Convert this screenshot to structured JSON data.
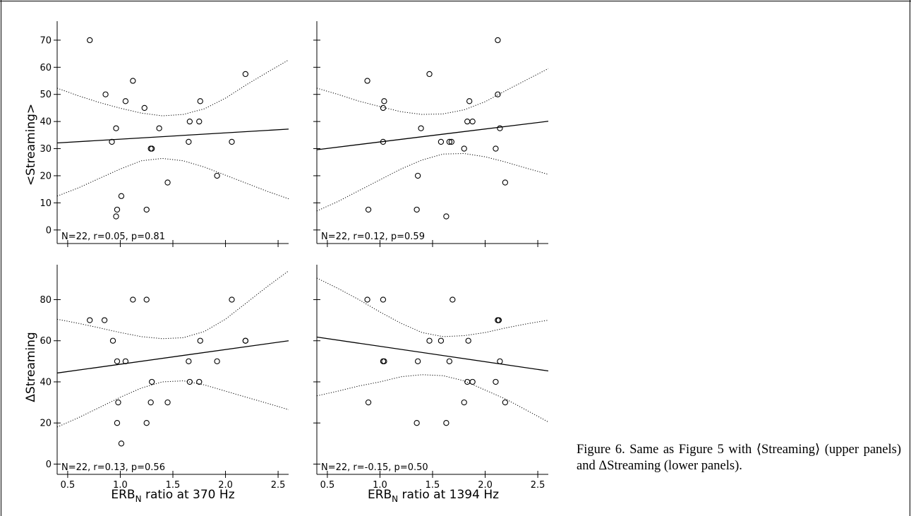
{
  "figure": {
    "caption": "Figure 6. Same as Figure 5 with ⟨Streaming⟩ (upper panels) and ΔStreaming (lower panels).",
    "xlabels": {
      "left_main": "ERB",
      "left_sub": "N",
      "left_rest": " ratio at 370 Hz",
      "right_main": "ERB",
      "right_sub": "N",
      "right_rest": " ratio at 1394 Hz"
    },
    "ylabels": {
      "top": "<Streaming>",
      "bottom": "ΔStreaming"
    }
  },
  "chart_data": [
    {
      "type": "scatter",
      "panel": "upper-left",
      "xlabel": "",
      "ylabel": "<Streaming>",
      "xlim": [
        0.4,
        2.6
      ],
      "ylim": [
        -5,
        77
      ],
      "xticks": [
        0.5,
        1.0,
        1.5,
        2.0,
        2.5
      ],
      "yticks": [
        0,
        10,
        20,
        30,
        40,
        50,
        60,
        70
      ],
      "annotation": "N=22, r=0.05, p=0.81",
      "points": [
        [
          0.71,
          70
        ],
        [
          0.86,
          50
        ],
        [
          1.12,
          55
        ],
        [
          1.05,
          47.5
        ],
        [
          1.23,
          45
        ],
        [
          0.92,
          32.5
        ],
        [
          0.96,
          37.5
        ],
        [
          1.29,
          30
        ],
        [
          1.3,
          30
        ],
        [
          1.37,
          37.5
        ],
        [
          1.76,
          47.5
        ],
        [
          2.19,
          57.5
        ],
        [
          1.66,
          40
        ],
        [
          1.75,
          40
        ],
        [
          1.65,
          32.5
        ],
        [
          2.06,
          32.5
        ],
        [
          1.92,
          20
        ],
        [
          1.45,
          17.5
        ],
        [
          1.01,
          12.5
        ],
        [
          0.97,
          7.5
        ],
        [
          0.96,
          5
        ],
        [
          1.25,
          7.5
        ]
      ],
      "fit": [
        [
          0.4,
          32.1
        ],
        [
          2.6,
          37.2
        ]
      ],
      "ci_upper": [
        [
          0.4,
          52.3
        ],
        [
          0.6,
          49.5
        ],
        [
          0.8,
          47
        ],
        [
          1.0,
          44.9
        ],
        [
          1.2,
          43.1
        ],
        [
          1.4,
          42.1
        ],
        [
          1.6,
          42.6
        ],
        [
          1.8,
          44.7
        ],
        [
          2.0,
          48.6
        ],
        [
          2.2,
          53.6
        ],
        [
          2.4,
          58.2
        ],
        [
          2.6,
          62.7
        ]
      ],
      "ci_lower": [
        [
          0.4,
          12.5
        ],
        [
          0.6,
          15.5
        ],
        [
          0.8,
          19
        ],
        [
          1.0,
          22.5
        ],
        [
          1.2,
          25.5
        ],
        [
          1.4,
          26.4
        ],
        [
          1.6,
          25.5
        ],
        [
          1.8,
          23.2
        ],
        [
          2.0,
          20.2
        ],
        [
          2.2,
          17.2
        ],
        [
          2.4,
          14.2
        ],
        [
          2.6,
          11.5
        ]
      ]
    },
    {
      "type": "scatter",
      "panel": "upper-right",
      "xlabel": "",
      "ylabel": "",
      "xlim": [
        0.4,
        2.6
      ],
      "ylim": [
        -5,
        77
      ],
      "xticks": [
        0.5,
        1.0,
        1.5,
        2.0,
        2.5
      ],
      "yticks": [
        0,
        10,
        20,
        30,
        40,
        50,
        60,
        70
      ],
      "annotation": "N=22, r=0.12, p=0.59",
      "points": [
        [
          0.88,
          55
        ],
        [
          1.03,
          45
        ],
        [
          1.04,
          47.5
        ],
        [
          1.47,
          57.5
        ],
        [
          2.12,
          70
        ],
        [
          2.12,
          50
        ],
        [
          1.85,
          47.5
        ],
        [
          1.83,
          40
        ],
        [
          1.88,
          40
        ],
        [
          1.39,
          37.5
        ],
        [
          2.14,
          37.5
        ],
        [
          1.03,
          32.5
        ],
        [
          1.58,
          32.5
        ],
        [
          1.66,
          32.5
        ],
        [
          1.68,
          32.5
        ],
        [
          1.8,
          30
        ],
        [
          2.1,
          30
        ],
        [
          1.36,
          20
        ],
        [
          2.19,
          17.5
        ],
        [
          0.89,
          7.5
        ],
        [
          1.35,
          7.5
        ],
        [
          1.63,
          5
        ]
      ],
      "fit": [
        [
          0.4,
          29.6
        ],
        [
          2.6,
          40.1
        ]
      ],
      "ci_upper": [
        [
          0.4,
          52.3
        ],
        [
          0.6,
          50
        ],
        [
          0.8,
          47.5
        ],
        [
          1.0,
          45.5
        ],
        [
          1.2,
          43.6
        ],
        [
          1.4,
          42.6
        ],
        [
          1.6,
          42.8
        ],
        [
          1.8,
          44.3
        ],
        [
          2.0,
          47.3
        ],
        [
          2.2,
          51.5
        ],
        [
          2.4,
          55.5
        ],
        [
          2.6,
          59.5
        ]
      ],
      "ci_lower": [
        [
          0.4,
          7
        ],
        [
          0.6,
          10.5
        ],
        [
          0.8,
          14.5
        ],
        [
          1.0,
          18.5
        ],
        [
          1.2,
          22.5
        ],
        [
          1.4,
          25.8
        ],
        [
          1.6,
          28
        ],
        [
          1.8,
          28.2
        ],
        [
          2.0,
          27
        ],
        [
          2.2,
          25
        ],
        [
          2.4,
          22.7
        ],
        [
          2.6,
          20.5
        ]
      ]
    },
    {
      "type": "scatter",
      "panel": "lower-left",
      "xlabel": "ERBN ratio at 370 Hz",
      "ylabel": "ΔStreaming",
      "xlim": [
        0.4,
        2.6
      ],
      "ylim": [
        -5,
        97
      ],
      "xticks": [
        0.5,
        1.0,
        1.5,
        2.0,
        2.5
      ],
      "yticks": [
        0,
        20,
        40,
        60,
        80
      ],
      "annotation": "N=22, r=0.13, p=0.56",
      "points": [
        [
          0.71,
          70
        ],
        [
          0.85,
          70
        ],
        [
          1.12,
          80
        ],
        [
          1.25,
          80
        ],
        [
          2.06,
          80
        ],
        [
          0.93,
          60
        ],
        [
          1.76,
          60
        ],
        [
          2.19,
          60
        ],
        [
          0.97,
          50
        ],
        [
          1.05,
          50
        ],
        [
          1.65,
          50
        ],
        [
          1.92,
          50
        ],
        [
          1.3,
          40
        ],
        [
          1.66,
          40
        ],
        [
          1.75,
          40
        ],
        [
          0.98,
          30
        ],
        [
          1.29,
          30
        ],
        [
          1.45,
          30
        ],
        [
          0.97,
          20
        ],
        [
          1.25,
          20
        ],
        [
          1.01,
          10
        ],
        [
          2.19,
          60
        ]
      ],
      "fit": [
        [
          0.4,
          44.3
        ],
        [
          2.6,
          60
        ]
      ],
      "ci_upper": [
        [
          0.4,
          70.5
        ],
        [
          0.6,
          68.5
        ],
        [
          0.8,
          66.3
        ],
        [
          1.0,
          64
        ],
        [
          1.2,
          62
        ],
        [
          1.4,
          61
        ],
        [
          1.6,
          61.5
        ],
        [
          1.8,
          64.5
        ],
        [
          2.0,
          70.5
        ],
        [
          2.2,
          78.5
        ],
        [
          2.4,
          86.5
        ],
        [
          2.6,
          94
        ]
      ],
      "ci_lower": [
        [
          0.4,
          18
        ],
        [
          0.6,
          22.5
        ],
        [
          0.8,
          27.5
        ],
        [
          1.0,
          32.5
        ],
        [
          1.2,
          37
        ],
        [
          1.4,
          40
        ],
        [
          1.6,
          40.5
        ],
        [
          1.8,
          38.5
        ],
        [
          2.0,
          35.5
        ],
        [
          2.2,
          32.5
        ],
        [
          2.4,
          29.5
        ],
        [
          2.6,
          26.5
        ]
      ]
    },
    {
      "type": "scatter",
      "panel": "lower-right",
      "xlabel": "ERBN ratio at 1394 Hz",
      "ylabel": "",
      "xlim": [
        0.4,
        2.6
      ],
      "ylim": [
        -5,
        97
      ],
      "xticks": [
        0.5,
        1.0,
        1.5,
        2.0,
        2.5
      ],
      "yticks": [
        0,
        20,
        40,
        60,
        80
      ],
      "annotation": "N=22, r=-0.15, p=0.50",
      "points": [
        [
          0.88,
          80
        ],
        [
          1.03,
          80
        ],
        [
          1.69,
          80
        ],
        [
          2.12,
          70
        ],
        [
          2.13,
          70
        ],
        [
          1.47,
          60
        ],
        [
          1.58,
          60
        ],
        [
          1.84,
          60
        ],
        [
          1.03,
          50
        ],
        [
          1.04,
          50
        ],
        [
          1.36,
          50
        ],
        [
          1.66,
          50
        ],
        [
          2.14,
          50
        ],
        [
          1.83,
          40
        ],
        [
          1.88,
          40
        ],
        [
          2.1,
          40
        ],
        [
          0.89,
          30
        ],
        [
          1.8,
          30
        ],
        [
          2.19,
          30
        ],
        [
          1.35,
          20
        ],
        [
          1.63,
          20
        ],
        [
          2.12,
          70
        ]
      ],
      "fit": [
        [
          0.4,
          61.8
        ],
        [
          2.6,
          45.3
        ]
      ],
      "ci_upper": [
        [
          0.4,
          90.5
        ],
        [
          0.6,
          85.5
        ],
        [
          0.8,
          80
        ],
        [
          1.0,
          74
        ],
        [
          1.2,
          68.5
        ],
        [
          1.4,
          64
        ],
        [
          1.6,
          62
        ],
        [
          1.8,
          62.5
        ],
        [
          2.0,
          64
        ],
        [
          2.2,
          66.3
        ],
        [
          2.4,
          68.3
        ],
        [
          2.6,
          70
        ]
      ],
      "ci_lower": [
        [
          0.4,
          33.2
        ],
        [
          0.6,
          35.5
        ],
        [
          0.8,
          38
        ],
        [
          1.0,
          40
        ],
        [
          1.2,
          42.5
        ],
        [
          1.4,
          43.5
        ],
        [
          1.6,
          43
        ],
        [
          1.8,
          40.5
        ],
        [
          2.0,
          36
        ],
        [
          2.2,
          31.5
        ],
        [
          2.4,
          26
        ],
        [
          2.6,
          20.5
        ]
      ]
    }
  ]
}
